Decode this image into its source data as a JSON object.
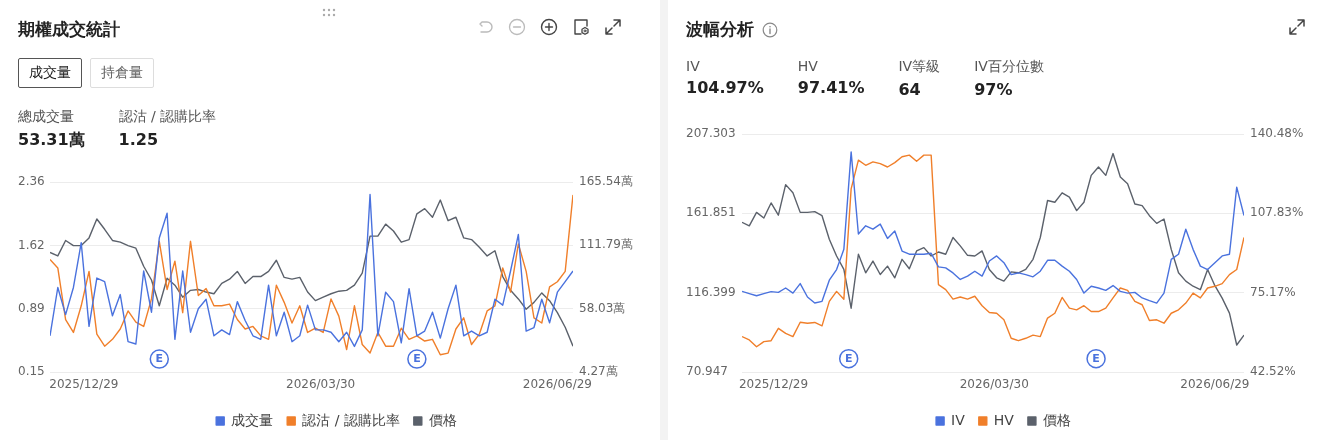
{
  "chart_data": [
    {
      "type": "line",
      "title": "期權成交統計",
      "annotations": [
        "成交量",
        "持倉量",
        "總成交量",
        "53.31萬",
        "認沽 / 認購比率",
        "1.25",
        {
          "text": "E",
          "x": "2026-01-27",
          "y": 0.3
        },
        {
          "text": "E",
          "x": "2026-05-06",
          "y": 0.3
        }
      ],
      "x": [
        "2025-12-16",
        "2025-12-19",
        "2025-12-22",
        "2025-12-25",
        "2025-12-28",
        "2025-12-31",
        "2026-01-03",
        "2026-01-06",
        "2026-01-09",
        "2026-01-12",
        "2026-01-15",
        "2026-01-18",
        "2026-01-21",
        "2026-01-24",
        "2026-01-27",
        "2026-01-30",
        "2026-02-02",
        "2026-02-05",
        "2026-02-08",
        "2026-02-11",
        "2026-02-14",
        "2026-02-17",
        "2026-02-20",
        "2026-02-23",
        "2026-02-26",
        "2026-03-01",
        "2026-03-04",
        "2026-03-07",
        "2026-03-10",
        "2026-03-13",
        "2026-03-16",
        "2026-03-19",
        "2026-03-22",
        "2026-03-25",
        "2026-03-28",
        "2026-03-31",
        "2026-04-03",
        "2026-04-06",
        "2026-04-09",
        "2026-04-12",
        "2026-04-15",
        "2026-04-18",
        "2026-04-21",
        "2026-04-24",
        "2026-04-27",
        "2026-04-30",
        "2026-05-03",
        "2026-05-06",
        "2026-05-09",
        "2026-05-12",
        "2026-05-15",
        "2026-05-18",
        "2026-05-21",
        "2026-05-24",
        "2026-05-27",
        "2026-05-30",
        "2026-06-02",
        "2026-06-05",
        "2026-06-08",
        "2026-06-11",
        "2026-06-14",
        "2026-06-17",
        "2026-06-20",
        "2026-06-23",
        "2026-06-26",
        "2026-06-29",
        "2026-07-02",
        "2026-07-05"
      ],
      "xlim": [
        "2025-12-16",
        "2026-07-05"
      ],
      "xticks": [
        {
          "value": "2025-12-29",
          "label": "2025/12/29"
        },
        {
          "value": "2026-03-30",
          "label": "2026/03/30"
        },
        {
          "value": "2026-06-29",
          "label": "2026/06/29"
        }
      ],
      "ylim": [
        0.15,
        2.36
      ],
      "yticks": [
        0.15,
        0.89,
        1.62,
        2.36
      ],
      "y2lim": [
        4.27,
        165.54
      ],
      "y2ticks": [
        {
          "value": 4.27,
          "label": "4.27萬"
        },
        {
          "value": 58.03,
          "label": "58.03萬"
        },
        {
          "value": 111.79,
          "label": "111.79萬"
        },
        {
          "value": 165.54,
          "label": "165.54萬"
        }
      ],
      "grid": "y",
      "legend": "bottom",
      "marker": "none",
      "line_style": "solid",
      "series": [
        {
          "name": "成交量",
          "color": "#4a72de",
          "axis": "y2",
          "values": [
            35,
            76,
            53,
            76,
            114,
            43,
            84,
            81,
            52,
            70,
            30,
            28,
            90,
            55,
            118,
            139,
            32,
            90,
            38,
            58,
            66,
            35,
            40,
            36,
            64,
            48,
            35,
            32,
            78,
            35,
            55,
            30,
            35,
            61,
            40,
            40,
            38,
            30,
            38,
            26,
            40,
            155,
            35,
            72,
            64,
            29,
            75,
            35,
            39,
            55,
            33,
            58,
            78,
            35,
            39,
            35,
            38,
            66,
            61,
            90,
            121,
            39,
            42,
            66,
            46,
            72,
            81,
            90
          ]
        },
        {
          "name": "認沽 / 認購比率",
          "color": "#f07f2a",
          "values": [
            1.46,
            1.36,
            0.76,
            0.61,
            0.92,
            1.32,
            0.59,
            0.45,
            0.53,
            0.65,
            0.86,
            0.73,
            0.68,
            1.0,
            1.67,
            1.11,
            1.44,
            0.84,
            1.67,
            1.04,
            1.12,
            0.92,
            0.92,
            0.94,
            0.76,
            0.65,
            0.68,
            0.57,
            0.53,
            1.16,
            0.96,
            0.72,
            0.92,
            0.61,
            0.66,
            0.61,
            1.0,
            0.8,
            0.41,
            0.92,
            0.47,
            0.37,
            0.61,
            0.45,
            0.45,
            0.66,
            0.53,
            0.57,
            0.51,
            0.53,
            0.35,
            0.37,
            0.65,
            0.78,
            0.47,
            0.59,
            0.86,
            0.92,
            1.36,
            1.08,
            1.64,
            1.32,
            0.78,
            0.72,
            1.14,
            1.2,
            1.32,
            2.21
          ]
        },
        {
          "name": "價格",
          "color": "#5b616b",
          "values": [
            1.54,
            1.5,
            1.68,
            1.62,
            1.62,
            1.71,
            1.93,
            1.81,
            1.68,
            1.66,
            1.62,
            1.59,
            1.38,
            1.22,
            0.92,
            1.24,
            1.16,
            1.02,
            1.1,
            1.11,
            1.08,
            1.06,
            1.18,
            1.23,
            1.32,
            1.18,
            1.26,
            1.26,
            1.32,
            1.45,
            1.25,
            1.23,
            1.25,
            1.08,
            0.98,
            1.02,
            1.06,
            1.09,
            1.1,
            1.16,
            1.3,
            1.73,
            1.73,
            1.87,
            1.79,
            1.66,
            1.69,
            1.99,
            2.05,
            1.95,
            2.15,
            1.91,
            1.95,
            1.71,
            1.69,
            1.6,
            1.5,
            1.56,
            1.26,
            1.1,
            1.0,
            0.88,
            0.96,
            1.07,
            0.98,
            0.84,
            0.67,
            0.45
          ]
        }
      ]
    },
    {
      "type": "line",
      "title": "波幅分析",
      "annotations": [
        "IV",
        "104.97%",
        "HV",
        "97.41%",
        "IV等級",
        "64",
        "IV百分位數",
        "97%",
        {
          "text": "E",
          "x": "2026-01-29",
          "y": 78.6
        },
        {
          "text": "E",
          "x": "2026-05-11",
          "y": 78.6
        }
      ],
      "x": [
        "2025-12-16",
        "2025-12-19",
        "2025-12-22",
        "2025-12-25",
        "2025-12-28",
        "2025-12-31",
        "2026-01-03",
        "2026-01-06",
        "2026-01-09",
        "2026-01-12",
        "2026-01-15",
        "2026-01-18",
        "2026-01-21",
        "2026-01-24",
        "2026-01-27",
        "2026-01-30",
        "2026-02-02",
        "2026-02-05",
        "2026-02-08",
        "2026-02-11",
        "2026-02-14",
        "2026-02-17",
        "2026-02-20",
        "2026-02-23",
        "2026-02-26",
        "2026-03-01",
        "2026-03-04",
        "2026-03-07",
        "2026-03-10",
        "2026-03-13",
        "2026-03-16",
        "2026-03-19",
        "2026-03-22",
        "2026-03-25",
        "2026-03-28",
        "2026-03-31",
        "2026-04-03",
        "2026-04-06",
        "2026-04-09",
        "2026-04-12",
        "2026-04-15",
        "2026-04-18",
        "2026-04-21",
        "2026-04-24",
        "2026-04-27",
        "2026-04-30",
        "2026-05-03",
        "2026-05-06",
        "2026-05-09",
        "2026-05-12",
        "2026-05-15",
        "2026-05-18",
        "2026-05-21",
        "2026-05-24",
        "2026-05-27",
        "2026-05-30",
        "2026-06-02",
        "2026-06-05",
        "2026-06-08",
        "2026-06-11",
        "2026-06-14",
        "2026-06-17",
        "2026-06-20",
        "2026-06-23",
        "2026-06-26",
        "2026-06-29",
        "2026-07-02",
        "2026-07-05",
        "2026-07-08",
        "2026-07-11"
      ],
      "xlim": [
        "2025-12-16",
        "2026-07-11"
      ],
      "xticks": [
        {
          "value": "2025-12-29",
          "label": "2025/12/29"
        },
        {
          "value": "2026-03-30",
          "label": "2026/03/30"
        },
        {
          "value": "2026-06-29",
          "label": "2026/06/29"
        }
      ],
      "ylim": [
        70.947,
        207.303
      ],
      "yticks": [
        70.947,
        116.399,
        161.851,
        207.303
      ],
      "y2lim": [
        42.52,
        140.48
      ],
      "y2ticks": [
        {
          "value": 42.52,
          "label": "42.52%"
        },
        {
          "value": 75.17,
          "label": "75.17%"
        },
        {
          "value": 107.83,
          "label": "107.83%"
        },
        {
          "value": 140.48,
          "label": "140.48%"
        }
      ],
      "grid": "y",
      "legend": "bottom",
      "marker": "none",
      "line_style": "solid",
      "series": [
        {
          "name": "IV",
          "color": "#4a72de",
          "axis": "y2",
          "values": [
            75.7,
            74.8,
            73.9,
            74.8,
            75.6,
            75.3,
            77.1,
            75.0,
            78.9,
            73.4,
            70.9,
            71.6,
            80.3,
            84.7,
            93.0,
            133.1,
            99.3,
            102.7,
            101.3,
            103.4,
            97.5,
            100.6,
            92.3,
            91.0,
            91.0,
            91.0,
            91.4,
            85.8,
            85.4,
            83.3,
            80.6,
            82.0,
            84.0,
            82.0,
            88.2,
            90.3,
            87.5,
            82.6,
            83.3,
            82.6,
            81.7,
            84.0,
            88.5,
            88.5,
            86.1,
            84.0,
            80.6,
            75.0,
            77.8,
            77.1,
            76.1,
            78.1,
            75.7,
            75.0,
            75.3,
            73.0,
            71.9,
            70.9,
            75.0,
            88.9,
            91.0,
            101.3,
            93.0,
            86.1,
            84.7,
            87.5,
            90.3,
            91.0,
            118.6,
            106.9
          ]
        },
        {
          "name": "HV",
          "color": "#f07f2a",
          "axis": "y2",
          "values": [
            57.1,
            55.7,
            52.9,
            55.0,
            55.4,
            60.5,
            58.4,
            57.1,
            63.0,
            62.6,
            62.9,
            61.5,
            71.6,
            75.7,
            72.5,
            117.9,
            129.7,
            127.6,
            129.0,
            128.3,
            126.9,
            128.7,
            131.1,
            131.8,
            129.3,
            131.8,
            131.8,
            78.5,
            76.4,
            72.5,
            73.4,
            72.5,
            73.7,
            69.8,
            67.0,
            66.7,
            64.0,
            56.4,
            55.4,
            56.4,
            57.7,
            57.1,
            64.7,
            66.7,
            73.2,
            68.8,
            68.1,
            69.8,
            67.4,
            67.4,
            68.8,
            73.0,
            77.1,
            76.1,
            71.6,
            70.2,
            63.7,
            64.0,
            62.6,
            66.7,
            68.1,
            70.9,
            75.0,
            73.0,
            77.1,
            77.8,
            78.9,
            82.6,
            84.7,
            97.9
          ]
        },
        {
          "name": "價格",
          "color": "#5b616b",
          "values": [
            156.7,
            154.7,
            162.4,
            159.2,
            167.8,
            160.8,
            178.3,
            173.6,
            162.4,
            162.4,
            162.8,
            160.5,
            147.0,
            137.4,
            129.7,
            107.5,
            138.4,
            127.8,
            134.5,
            126.8,
            131.6,
            124.9,
            135.5,
            130.1,
            140.3,
            142.2,
            137.4,
            139.7,
            138.4,
            148.0,
            143.2,
            137.8,
            137.4,
            140.3,
            129.7,
            124.9,
            123.0,
            128.3,
            127.8,
            129.7,
            135.5,
            148.0,
            169.2,
            168.2,
            173.6,
            171.1,
            163.4,
            168.2,
            183.6,
            188.4,
            183.6,
            196.1,
            182.7,
            178.8,
            167.2,
            166.3,
            160.5,
            156.1,
            158.6,
            141.2,
            127.8,
            123.0,
            120.1,
            118.1,
            129.7,
            120.4,
            113.3,
            104.7,
            86.4,
            92.1
          ]
        }
      ]
    }
  ]
}
